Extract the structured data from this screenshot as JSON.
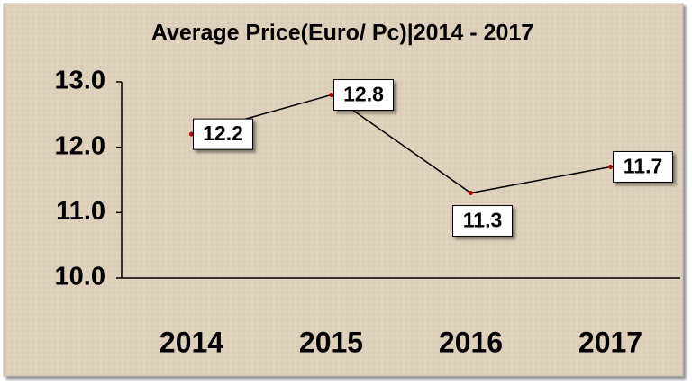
{
  "chart_data": {
    "type": "line",
    "title": "Average Price(Euro/ Pc)|2014 - 2017",
    "categories": [
      "2014",
      "2015",
      "2016",
      "2017"
    ],
    "series": [
      {
        "name": "Average Price",
        "color": "#000000",
        "values": [
          12.2,
          12.8,
          11.3,
          11.7
        ]
      }
    ],
    "ylim": [
      10,
      13
    ],
    "yticks": [
      {
        "value": 10,
        "label": "10.0"
      },
      {
        "value": 11,
        "label": "11.0"
      },
      {
        "value": 12,
        "label": "12.0"
      },
      {
        "value": 13,
        "label": "13.0"
      }
    ],
    "grid": false
  }
}
